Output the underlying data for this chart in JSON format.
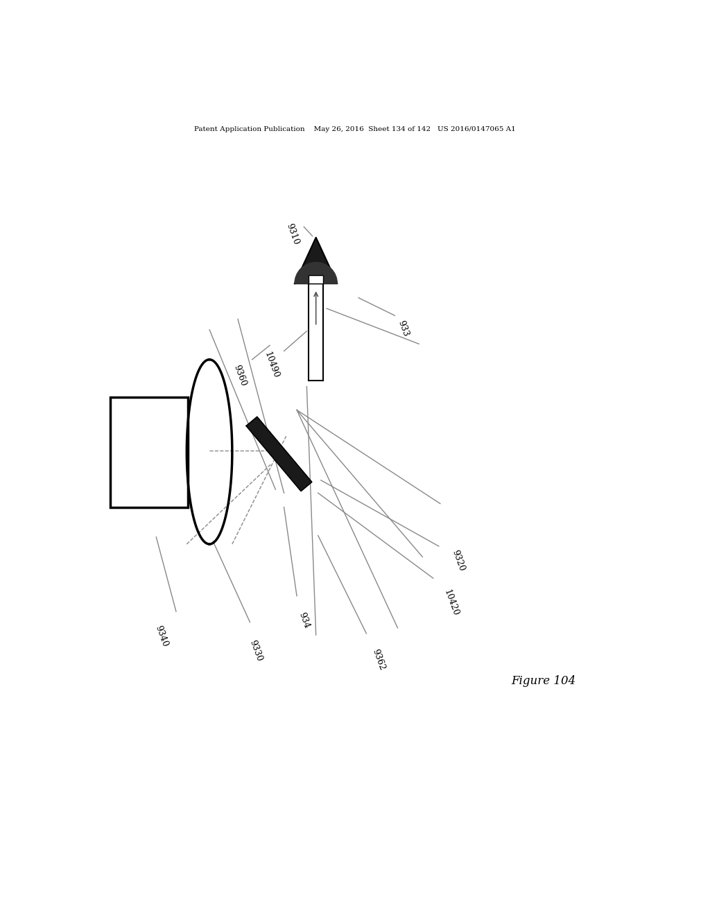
{
  "bg_color": "#ffffff",
  "title_text": "Patent Application Publication    May 26, 2016  Sheet 134 of 142   US 2016/0147065 A1",
  "figure_label": "Figure 104",
  "line_color": "#888888",
  "dark_color": "#222222",
  "black": "#000000"
}
